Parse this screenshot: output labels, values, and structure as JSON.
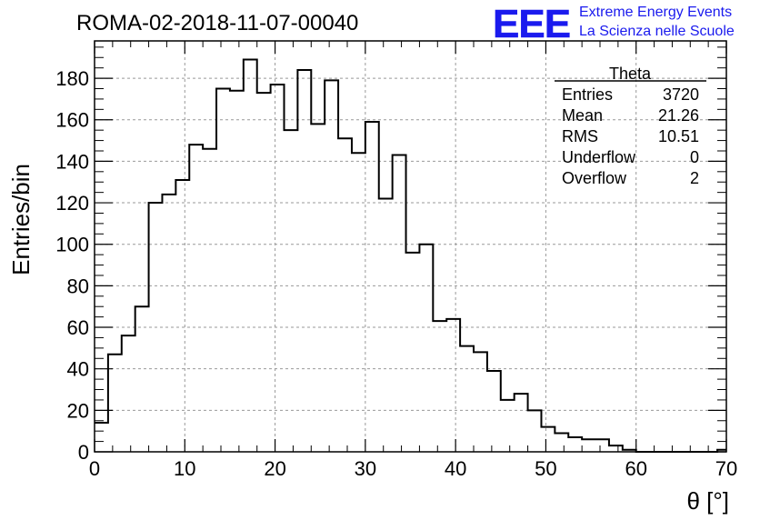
{
  "chart_data": {
    "type": "histogram",
    "title": "ROMA-02-2018-11-07-00040",
    "xlabel": "θ [°]",
    "ylabel": "Entries/bin",
    "xlim": [
      0,
      70
    ],
    "ylim": [
      0,
      198
    ],
    "x_tick_labels": [
      "0",
      "10",
      "20",
      "30",
      "40",
      "50",
      "60",
      "70"
    ],
    "y_tick_labels": [
      "0",
      "20",
      "40",
      "60",
      "80",
      "100",
      "120",
      "140",
      "160",
      "180"
    ],
    "grid": true,
    "bin_width": 1.5,
    "bin_start": 0,
    "values": [
      14,
      47,
      56,
      70,
      120,
      124,
      131,
      148,
      146,
      175,
      174,
      189,
      173,
      177,
      155,
      184,
      158,
      179,
      151,
      144,
      159,
      122,
      143,
      96,
      100,
      63,
      64,
      51,
      48,
      39,
      25,
      28,
      20,
      12,
      9,
      7,
      6,
      6,
      3,
      1,
      0,
      0,
      0,
      0,
      0,
      0,
      1
    ],
    "stats": {
      "name": "Theta",
      "rows": [
        {
          "label": "Entries",
          "value": "3720"
        },
        {
          "label": "Mean",
          "value": "21.26"
        },
        {
          "label": "RMS",
          "value": "10.51"
        },
        {
          "label": "Underflow",
          "value": "0"
        },
        {
          "label": "Overflow",
          "value": "2"
        }
      ]
    },
    "colors": {
      "line": "#000000",
      "grid": "#999999",
      "logo": "#1a1aee"
    }
  },
  "logo": {
    "mark": "EEE",
    "line1": "Extreme Energy Events",
    "line2": "La Scienza nelle Scuole"
  }
}
